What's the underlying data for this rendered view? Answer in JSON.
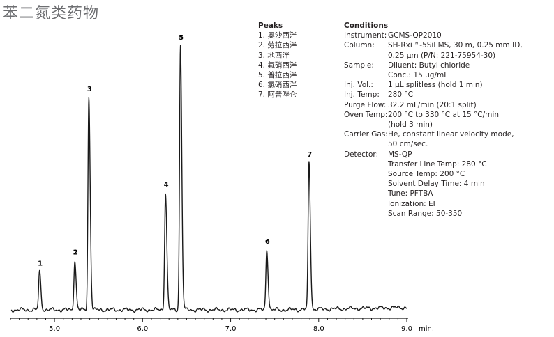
{
  "title": "苯二氮类药物",
  "peaks_header": "Peaks",
  "peaks": [
    "1. 奥沙西泮",
    "2. 劳拉西泮",
    "3. 地西泮",
    "4. 氟硝西泮",
    "5. 普拉西泮",
    "6. 氯硝西泮",
    "7. 阿普唑仑"
  ],
  "conditions_header": "Conditions",
  "conditions": [
    {
      "label": "Instrument:",
      "values": [
        "GCMS-QP2010"
      ]
    },
    {
      "label": "Column:",
      "values": [
        "SH-Rxi™-5Sil MS, 30 m, 0.25 mm ID,",
        "0.25 µm (P/N: 221-75954-30)"
      ]
    },
    {
      "label": "Sample:",
      "values": [
        "Diluent: Butyl chloride",
        "Conc.: 15 µg/mL"
      ]
    },
    {
      "label": "Inj. Vol.:",
      "values": [
        "1 µL splitless (hold 1 min)"
      ]
    },
    {
      "label": "Inj. Temp:",
      "values": [
        "280 °C"
      ]
    },
    {
      "label": "Purge Flow:",
      "values": [
        "32.2 mL/min (20:1 split)"
      ]
    },
    {
      "label": "Oven Temp:",
      "values": [
        "200 °C to 330 °C at 15 °C/min",
        "(hold 3 min)"
      ]
    },
    {
      "label": "Carrier Gas:",
      "values": [
        "He, constant linear velocity mode,",
        "50 cm/sec."
      ]
    },
    {
      "label": "Detector:",
      "values": [
        "MS-QP",
        "Transfer Line Temp: 280 °C",
        "Source Temp: 200 °C",
        "Solvent Delay Time: 4 min",
        "Tune: PFTBA",
        "Ionization: EI",
        "Scan Range: 50-350"
      ]
    }
  ],
  "chart_data": {
    "type": "line",
    "xlabel": "min.",
    "xlim": [
      4.5,
      9.0
    ],
    "x_ticks": [
      "5.0",
      "6.0",
      "7.0",
      "8.0",
      "9.0"
    ],
    "x_tick_values": [
      5.0,
      6.0,
      7.0,
      8.0,
      9.0
    ],
    "ylim": [
      0,
      1.0
    ],
    "baseline": 0.02,
    "peaks": [
      {
        "label": "1",
        "x": 4.83,
        "height": 0.16
      },
      {
        "label": "2",
        "x": 5.23,
        "height": 0.2
      },
      {
        "label": "3",
        "x": 5.39,
        "height": 0.8
      },
      {
        "label": "4",
        "x": 6.26,
        "height": 0.45
      },
      {
        "label": "5",
        "x": 6.43,
        "height": 0.99
      },
      {
        "label": "6",
        "x": 7.41,
        "height": 0.24
      },
      {
        "label": "7",
        "x": 7.89,
        "height": 0.56
      }
    ]
  }
}
